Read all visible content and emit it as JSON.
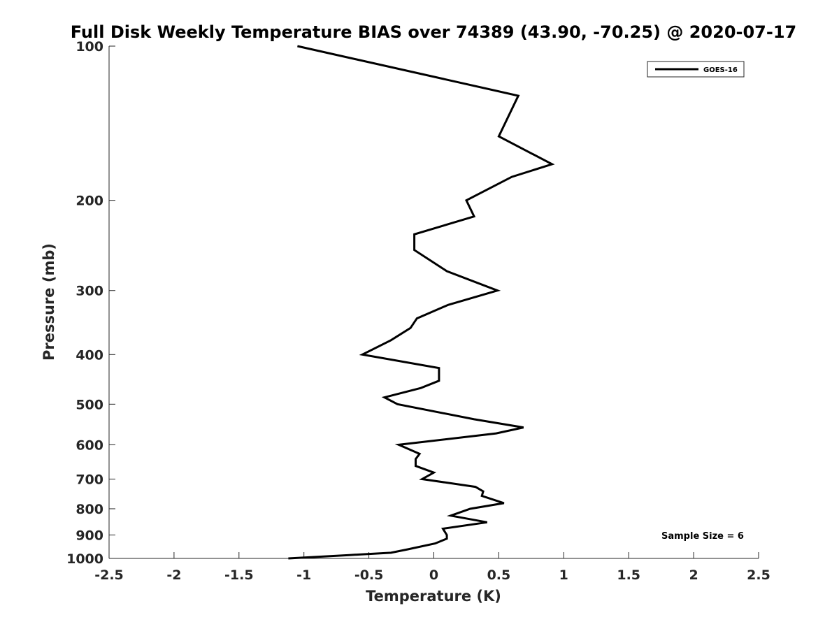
{
  "chart_data": {
    "type": "line",
    "title": "Full Disk Weekly Temperature BIAS over 74389 (43.90, -70.25) @ 2020-07-17",
    "xlabel": "Temperature (K)",
    "ylabel": "Pressure (mb)",
    "xlim": [
      -2.5,
      2.5
    ],
    "ylim": [
      100,
      1000
    ],
    "y_scale": "log",
    "y_reversed": true,
    "xticks": [
      "-2.5",
      "-2",
      "-1.5",
      "-1",
      "-0.5",
      "0",
      "0.5",
      "1",
      "1.5",
      "2",
      "2.5"
    ],
    "yticks": [
      "100",
      "200",
      "300",
      "400",
      "500",
      "600",
      "700",
      "800",
      "900",
      "1000"
    ],
    "grid": false,
    "legend": {
      "position": "top-right",
      "entries": [
        "GOES-16"
      ]
    },
    "annotation": "Sample Size = 6",
    "series": [
      {
        "name": "GOES-16",
        "color": "#000000",
        "points": [
          [
            -1.05,
            100
          ],
          [
            0.65,
            125
          ],
          [
            0.5,
            150
          ],
          [
            0.91,
            170
          ],
          [
            0.6,
            180
          ],
          [
            0.25,
            200
          ],
          [
            0.31,
            215
          ],
          [
            -0.15,
            233
          ],
          [
            -0.15,
            250
          ],
          [
            0.1,
            275
          ],
          [
            0.49,
            300
          ],
          [
            0.11,
            320
          ],
          [
            -0.13,
            340
          ],
          [
            -0.18,
            355
          ],
          [
            -0.33,
            375
          ],
          [
            -0.55,
            400
          ],
          [
            0.04,
            425
          ],
          [
            0.04,
            450
          ],
          [
            -0.1,
            465
          ],
          [
            -0.38,
            485
          ],
          [
            -0.28,
            500
          ],
          [
            0.31,
            535
          ],
          [
            0.69,
            555
          ],
          [
            0.48,
            570
          ],
          [
            -0.27,
            600
          ],
          [
            -0.11,
            625
          ],
          [
            -0.14,
            640
          ],
          [
            -0.14,
            660
          ],
          [
            0.0,
            680
          ],
          [
            -0.09,
            700
          ],
          [
            0.32,
            725
          ],
          [
            0.38,
            740
          ],
          [
            0.37,
            755
          ],
          [
            0.54,
            780
          ],
          [
            0.28,
            800
          ],
          [
            0.13,
            825
          ],
          [
            0.41,
            850
          ],
          [
            0.07,
            875
          ],
          [
            0.1,
            900
          ],
          [
            0.1,
            915
          ],
          [
            0.01,
            935
          ],
          [
            -0.2,
            960
          ],
          [
            -0.33,
            975
          ],
          [
            -0.65,
            985
          ],
          [
            -1.12,
            1000
          ]
        ]
      }
    ]
  }
}
